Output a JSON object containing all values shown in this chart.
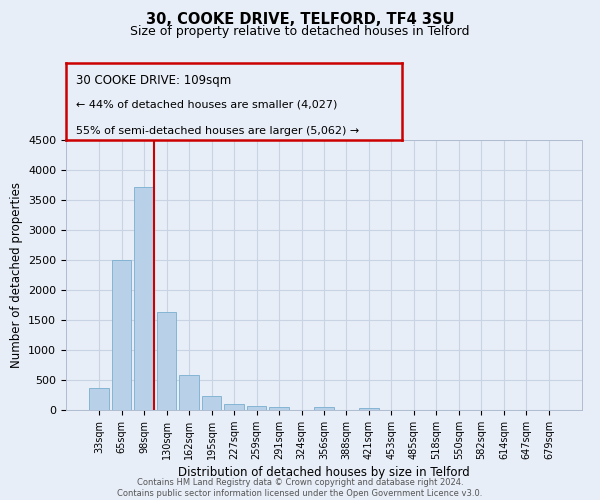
{
  "title_line1": "30, COOKE DRIVE, TELFORD, TF4 3SU",
  "title_line2": "Size of property relative to detached houses in Telford",
  "xlabel": "Distribution of detached houses by size in Telford",
  "ylabel": "Number of detached properties",
  "bar_labels": [
    "33sqm",
    "65sqm",
    "98sqm",
    "130sqm",
    "162sqm",
    "195sqm",
    "227sqm",
    "259sqm",
    "291sqm",
    "324sqm",
    "356sqm",
    "388sqm",
    "421sqm",
    "453sqm",
    "485sqm",
    "518sqm",
    "550sqm",
    "582sqm",
    "614sqm",
    "647sqm",
    "679sqm"
  ],
  "bar_values": [
    375,
    2500,
    3720,
    1640,
    590,
    240,
    105,
    60,
    50,
    0,
    55,
    0,
    40,
    0,
    0,
    0,
    0,
    0,
    0,
    0,
    0
  ],
  "bar_color": "#b8d0e8",
  "bar_edgecolor": "#7aafd0",
  "vline_color": "#cc0000",
  "annotation_title": "30 COOKE DRIVE: 109sqm",
  "annotation_line1": "← 44% of detached houses are smaller (4,027)",
  "annotation_line2": "55% of semi-detached houses are larger (5,062) →",
  "annotation_box_edgecolor": "#cc0000",
  "ylim": [
    0,
    4500
  ],
  "yticks": [
    0,
    500,
    1000,
    1500,
    2000,
    2500,
    3000,
    3500,
    4000,
    4500
  ],
  "grid_color": "#c8d4e4",
  "bg_color": "#e8eef8",
  "footer_line1": "Contains HM Land Registry data © Crown copyright and database right 2024.",
  "footer_line2": "Contains public sector information licensed under the Open Government Licence v3.0."
}
